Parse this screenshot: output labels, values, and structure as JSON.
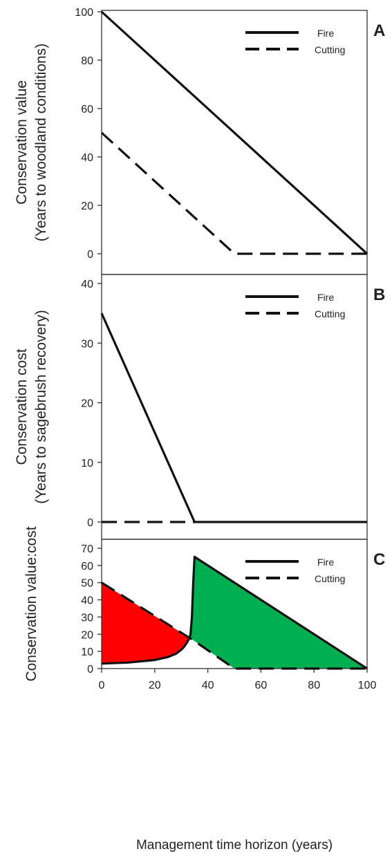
{
  "chart_data": [
    {
      "panel": "A",
      "type": "line",
      "ylabel_lines": [
        "Conservation value",
        "(Years to woodland conditions)"
      ],
      "xlim": [
        0,
        100
      ],
      "ylim": [
        0,
        100
      ],
      "yticks": [
        0,
        20,
        40,
        60,
        80,
        100
      ],
      "series": [
        {
          "name": "Fire",
          "style": "solid",
          "x": [
            0,
            100
          ],
          "y": [
            100,
            0
          ]
        },
        {
          "name": "Cutting",
          "style": "dashed",
          "x": [
            0,
            50,
            100
          ],
          "y": [
            50,
            0,
            0
          ]
        }
      ],
      "legend_position": "top-right"
    },
    {
      "panel": "B",
      "type": "line",
      "ylabel_lines": [
        "Conservation cost",
        "(Years to sagebrush recovery)"
      ],
      "xlim": [
        0,
        100
      ],
      "ylim": [
        0,
        40
      ],
      "yticks": [
        0,
        10,
        20,
        30,
        40
      ],
      "series": [
        {
          "name": "Fire",
          "style": "solid",
          "x": [
            0,
            35,
            100
          ],
          "y": [
            35,
            0,
            0
          ]
        },
        {
          "name": "Cutting",
          "style": "dashed",
          "x": [
            0,
            35
          ],
          "y": [
            0,
            0
          ]
        }
      ],
      "legend_position": "top-right"
    },
    {
      "panel": "C",
      "type": "area",
      "ylabel_lines": [
        "Conservation value:cost"
      ],
      "xlabel": "Management time horizon (years)",
      "xlim": [
        0,
        100
      ],
      "ylim": [
        0,
        70
      ],
      "xticks": [
        0,
        20,
        40,
        60,
        80,
        100
      ],
      "yticks": [
        0,
        10,
        20,
        30,
        40,
        50,
        60,
        70
      ],
      "series": [
        {
          "name": "Fire",
          "style": "solid",
          "x": [
            0,
            10,
            20,
            25,
            28,
            30,
            31,
            32,
            33,
            33.5,
            34,
            34.5,
            35,
            100
          ],
          "y": [
            2.9,
            3.5,
            5.0,
            6.7,
            8.6,
            11,
            12.5,
            14.8,
            17.5,
            20,
            30,
            50,
            65,
            0
          ]
        },
        {
          "name": "Cutting",
          "style": "dashed",
          "x": [
            0,
            33,
            34,
            35,
            50,
            100
          ],
          "y": [
            50,
            18,
            17,
            16,
            0,
            0
          ]
        }
      ],
      "fill_colors": {
        "cutting_advantage": "#ff0000",
        "fire_advantage": "#00b050"
      },
      "legend_position": "top-right"
    }
  ]
}
